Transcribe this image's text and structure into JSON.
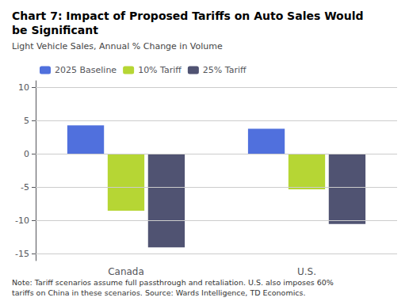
{
  "chart_data": {
    "type": "bar",
    "title": "Chart 7: Impact of Proposed Tariffs on Auto Sales Would\nbe Significant",
    "subtitle": "Light Vehicle Sales, Annual % Change in Volume",
    "note": "Note: Tariff scenarios assume full passthrough and retaliation. U.S. also imposes 60%\ntariffs on China in these scenarios. Source: Wards Intelligence, TD Economics.",
    "categories": [
      "Canada",
      "U.S."
    ],
    "series": [
      {
        "name": "2025 Baseline",
        "values": [
          4.3,
          3.8
        ]
      },
      {
        "name": "10% Tariff",
        "values": [
          -8.5,
          -5.3
        ]
      },
      {
        "name": "25% Tariff",
        "values": [
          -14.0,
          -10.5
        ]
      }
    ],
    "ylim": [
      -16,
      11
    ],
    "yticks": [
      -15,
      -10,
      -5,
      0,
      5,
      10
    ],
    "grid": true,
    "legend": "upper left"
  }
}
